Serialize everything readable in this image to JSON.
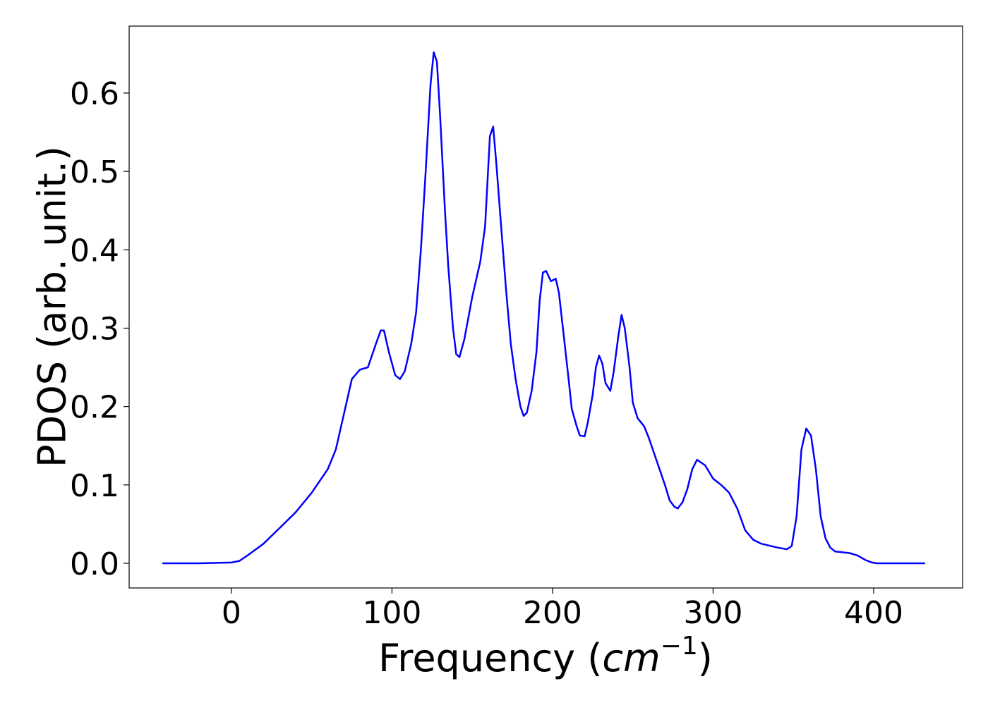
{
  "chart_data": {
    "type": "line",
    "ylabel": "PDOS (arb. unit.)",
    "xlabel": [
      "Frequency (",
      "cm",
      "−1",
      ")"
    ],
    "color": "#0000ff",
    "x": [
      -43,
      -20,
      0,
      5,
      10,
      20,
      30,
      40,
      50,
      60,
      65,
      70,
      75,
      80,
      85,
      90,
      93,
      95,
      98,
      102,
      105,
      108,
      112,
      115,
      118,
      121,
      124,
      126,
      128,
      130,
      133,
      135,
      138,
      140,
      142,
      145,
      150,
      155,
      158,
      161,
      163,
      165,
      168,
      171,
      174,
      177,
      180,
      182,
      184,
      187,
      190,
      192,
      194,
      196,
      199,
      202,
      204,
      207,
      210,
      212,
      215,
      217,
      220,
      222,
      225,
      227,
      229,
      231,
      233,
      236,
      238,
      241,
      243,
      245,
      248,
      250,
      253,
      257,
      260,
      265,
      270,
      273,
      276,
      278,
      281,
      284,
      287,
      290,
      295,
      300,
      305,
      310,
      315,
      320,
      325,
      330,
      340,
      346,
      349,
      352,
      355,
      358,
      361,
      364,
      367,
      370,
      373,
      376,
      385,
      390,
      395,
      399,
      402,
      432
    ],
    "values": [
      0,
      0,
      0.001,
      0.003,
      0.01,
      0.025,
      0.045,
      0.065,
      0.09,
      0.12,
      0.145,
      0.19,
      0.235,
      0.247,
      0.25,
      0.28,
      0.297,
      0.297,
      0.27,
      0.24,
      0.235,
      0.245,
      0.28,
      0.32,
      0.4,
      0.5,
      0.61,
      0.652,
      0.64,
      0.57,
      0.45,
      0.38,
      0.3,
      0.267,
      0.263,
      0.285,
      0.34,
      0.385,
      0.43,
      0.545,
      0.557,
      0.51,
      0.43,
      0.35,
      0.28,
      0.235,
      0.2,
      0.188,
      0.192,
      0.22,
      0.27,
      0.335,
      0.371,
      0.373,
      0.36,
      0.363,
      0.345,
      0.29,
      0.235,
      0.197,
      0.175,
      0.163,
      0.162,
      0.18,
      0.215,
      0.25,
      0.265,
      0.255,
      0.23,
      0.22,
      0.243,
      0.29,
      0.317,
      0.3,
      0.25,
      0.205,
      0.185,
      0.175,
      0.16,
      0.13,
      0.1,
      0.08,
      0.072,
      0.07,
      0.078,
      0.095,
      0.12,
      0.132,
      0.125,
      0.108,
      0.1,
      0.09,
      0.07,
      0.042,
      0.03,
      0.025,
      0.02,
      0.018,
      0.022,
      0.06,
      0.145,
      0.172,
      0.163,
      0.12,
      0.06,
      0.032,
      0.02,
      0.015,
      0.013,
      0.01,
      0.004,
      0.001,
      0,
      0
    ],
    "xlim": [
      -63.7,
      455.4
    ],
    "ylim": [
      -0.0315,
      0.6854
    ],
    "xticks": [
      0,
      100,
      200,
      300,
      400
    ],
    "yticks": [
      {
        "value": 0,
        "label": "0.0"
      },
      0.1,
      0.2,
      0.3,
      0.4,
      0.5,
      0.6
    ]
  }
}
